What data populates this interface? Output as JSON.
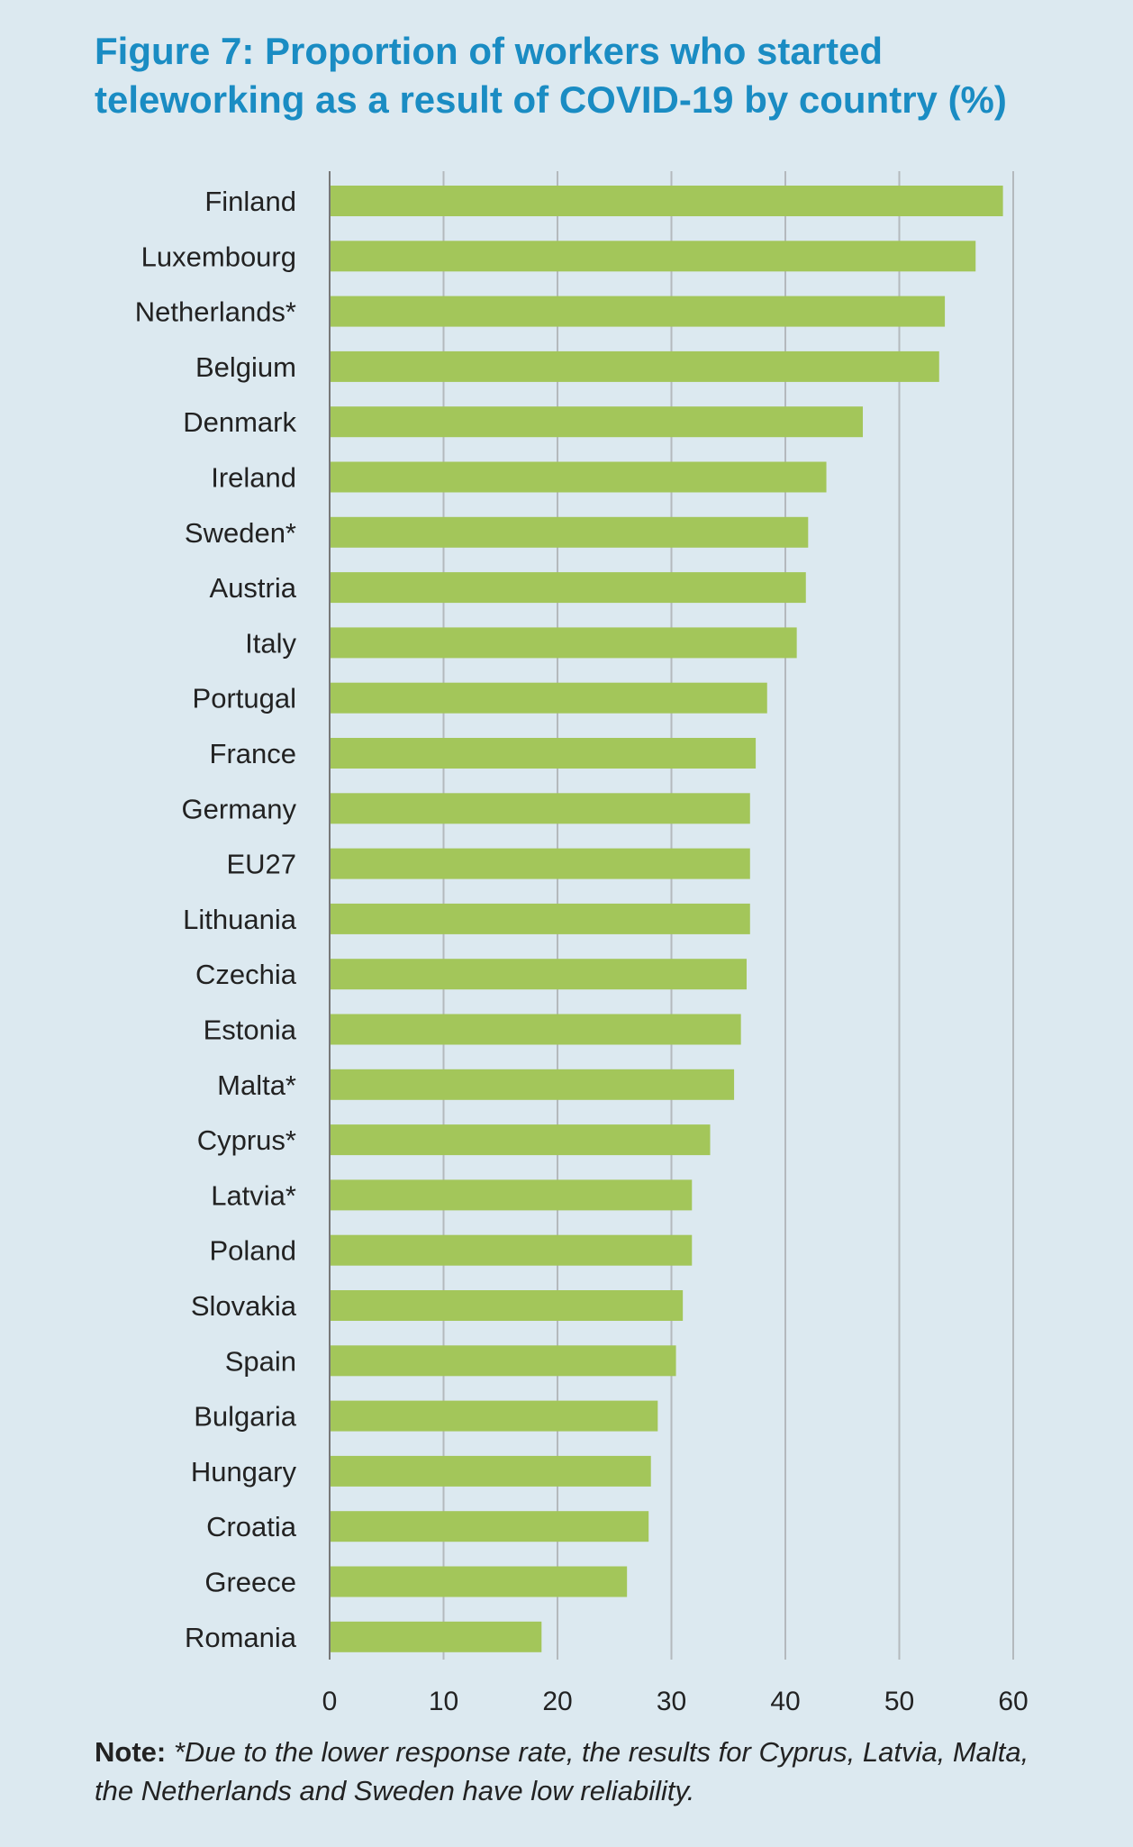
{
  "figure": {
    "title": "Figure 7: Proportion of workers who started teleworking as a result of COVID-19 by country (%)",
    "note_label": "Note:",
    "note_text": "*Due to the lower response rate, the results for Cyprus, Latvia, Malta, the Netherlands and Sweden have low reliability."
  },
  "colors": {
    "background": "#dce9f0",
    "title": "#1a8cc3",
    "bar": "#a3c65a",
    "grid": "#b4b9bd",
    "axis": "#777777"
  },
  "chart_data": {
    "type": "bar",
    "orientation": "horizontal",
    "categories": [
      "Finland",
      "Luxembourg",
      "Netherlands*",
      "Belgium",
      "Denmark",
      "Ireland",
      "Sweden*",
      "Austria",
      "Italy",
      "Portugal",
      "France",
      "Germany",
      "EU27",
      "Lithuania",
      "Czechia",
      "Estonia",
      "Malta*",
      "Cyprus*",
      "Latvia*",
      "Poland",
      "Slovakia",
      "Spain",
      "Bulgaria",
      "Hungary",
      "Croatia",
      "Greece",
      "Romania"
    ],
    "values": [
      59.1,
      56.7,
      54.0,
      53.5,
      46.8,
      43.6,
      42.0,
      41.8,
      41.0,
      38.4,
      37.4,
      36.9,
      36.9,
      36.9,
      36.6,
      36.1,
      35.5,
      33.4,
      31.8,
      31.8,
      31.0,
      30.4,
      28.8,
      28.2,
      28.0,
      26.1,
      18.6
    ],
    "xlim": [
      0,
      60
    ],
    "xticks": [
      "0",
      "10",
      "20",
      "30",
      "40",
      "50",
      "60"
    ],
    "grid": true,
    "legend": "none"
  }
}
